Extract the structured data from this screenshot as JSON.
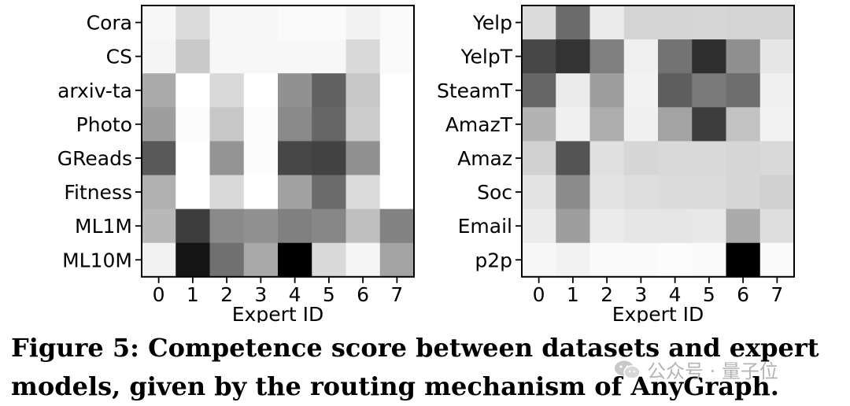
{
  "chart_data": [
    {
      "type": "heatmap",
      "colormap": "grayscale: 0 = white (low), 1 = black (high)",
      "xlabel": "Expert ID",
      "x_ticks": [
        "0",
        "1",
        "2",
        "3",
        "4",
        "5",
        "6",
        "7"
      ],
      "y_ticks": [
        "Cora",
        "CS",
        "arxiv-ta",
        "Photo",
        "GReads",
        "Fitness",
        "ML1M",
        "ML10M"
      ],
      "values": [
        [
          0.03,
          0.14,
          0.03,
          0.03,
          0.02,
          0.02,
          0.05,
          0.02
        ],
        [
          0.04,
          0.21,
          0.03,
          0.03,
          0.03,
          0.03,
          0.15,
          0.02
        ],
        [
          0.33,
          0.0,
          0.15,
          0.0,
          0.43,
          0.62,
          0.22,
          0.0
        ],
        [
          0.38,
          0.01,
          0.22,
          0.01,
          0.46,
          0.6,
          0.2,
          0.0
        ],
        [
          0.65,
          0.0,
          0.42,
          0.01,
          0.72,
          0.74,
          0.43,
          0.0
        ],
        [
          0.31,
          0.0,
          0.15,
          0.0,
          0.37,
          0.58,
          0.14,
          0.0
        ],
        [
          0.28,
          0.76,
          0.46,
          0.43,
          0.5,
          0.47,
          0.25,
          0.49
        ],
        [
          0.05,
          0.92,
          0.56,
          0.34,
          1.0,
          0.15,
          0.04,
          0.36
        ]
      ]
    },
    {
      "type": "heatmap",
      "colormap": "grayscale: 0 = white (low), 1 = black (high)",
      "xlabel": "Expert ID",
      "x_ticks": [
        "0",
        "1",
        "2",
        "3",
        "4",
        "5",
        "6",
        "7"
      ],
      "y_ticks": [
        "Yelp",
        "YelpT",
        "SteamT",
        "AmazT",
        "Amaz",
        "Soc",
        "Email",
        "p2p"
      ],
      "values": [
        [
          0.14,
          0.58,
          0.08,
          0.17,
          0.17,
          0.16,
          0.17,
          0.17
        ],
        [
          0.72,
          0.8,
          0.5,
          0.06,
          0.55,
          0.82,
          0.44,
          0.1
        ],
        [
          0.6,
          0.08,
          0.38,
          0.05,
          0.63,
          0.52,
          0.57,
          0.06
        ],
        [
          0.3,
          0.06,
          0.32,
          0.06,
          0.36,
          0.76,
          0.24,
          0.05
        ],
        [
          0.18,
          0.67,
          0.12,
          0.16,
          0.15,
          0.15,
          0.16,
          0.15
        ],
        [
          0.11,
          0.45,
          0.11,
          0.13,
          0.14,
          0.14,
          0.16,
          0.18
        ],
        [
          0.08,
          0.38,
          0.08,
          0.1,
          0.1,
          0.09,
          0.33,
          0.13
        ],
        [
          0.03,
          0.05,
          0.02,
          0.02,
          0.01,
          0.02,
          1.0,
          0.02
        ]
      ]
    }
  ],
  "caption": {
    "text": "Figure 5: Competence score between datasets and expert models, given by the routing mechanism of AnyGraph."
  },
  "watermark": {
    "text": "公众号 · 量子位",
    "icon": "wechat-icon"
  }
}
